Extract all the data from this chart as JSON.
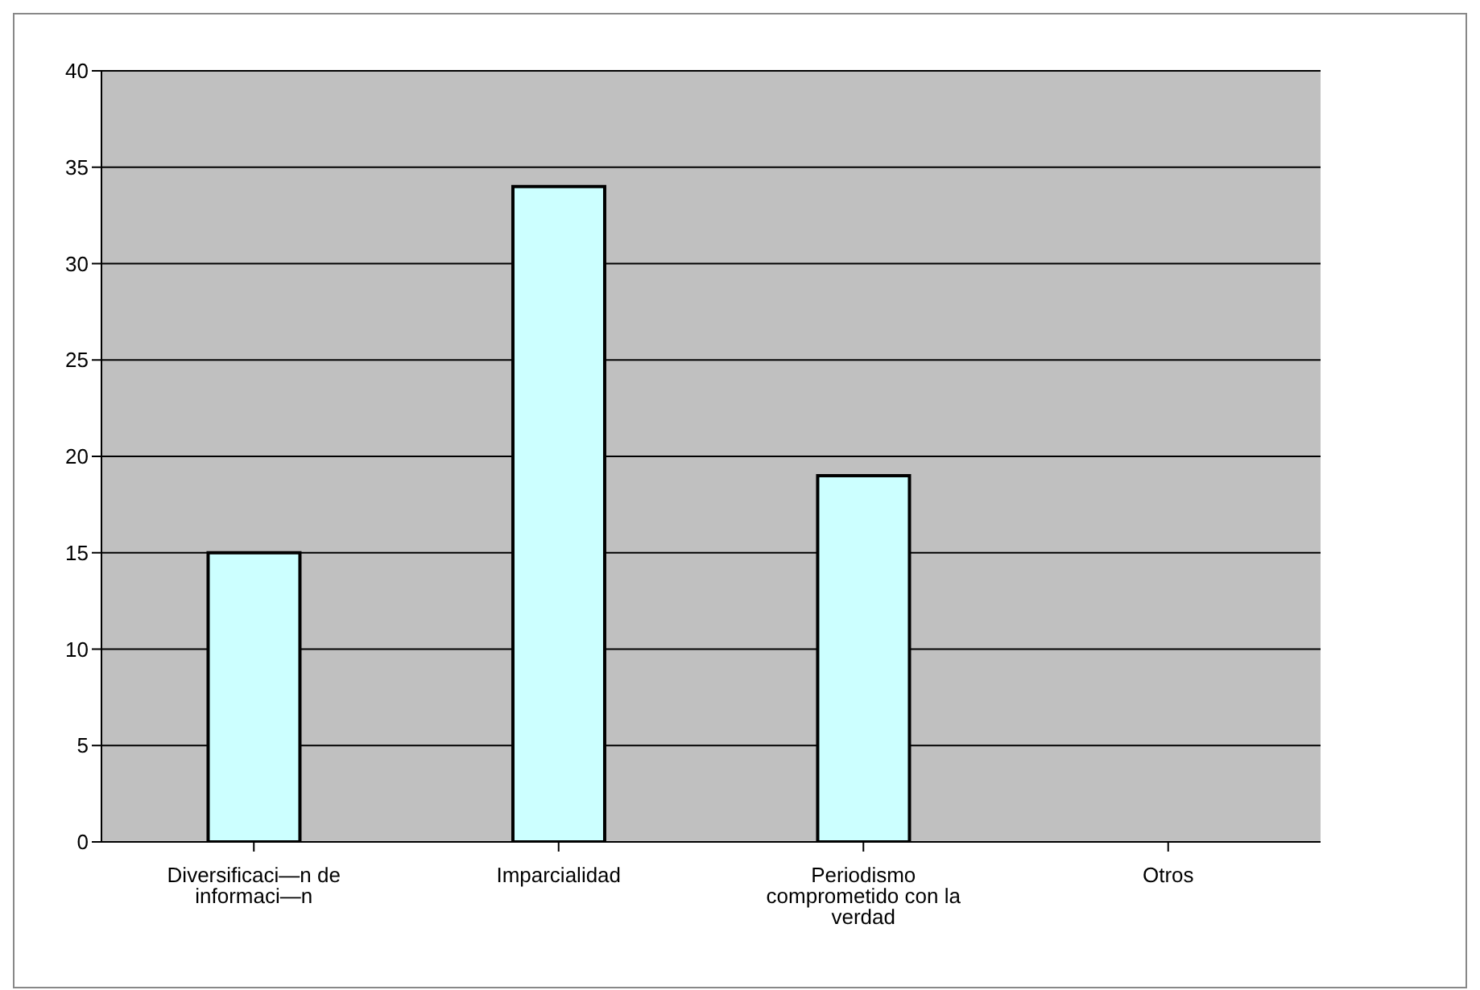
{
  "chart_data": {
    "type": "bar",
    "categories": [
      "Diversificaci—n de informaci—n",
      "Imparcialidad",
      "Periodismo comprometido con la verdad",
      "Otros"
    ],
    "values": [
      15,
      34,
      19,
      0
    ],
    "color": "#ccffff",
    "ylim": [
      0,
      40
    ],
    "yticks": [
      0,
      5,
      10,
      15,
      20,
      25,
      30,
      35,
      40
    ],
    "grid": "y",
    "legend": false
  }
}
